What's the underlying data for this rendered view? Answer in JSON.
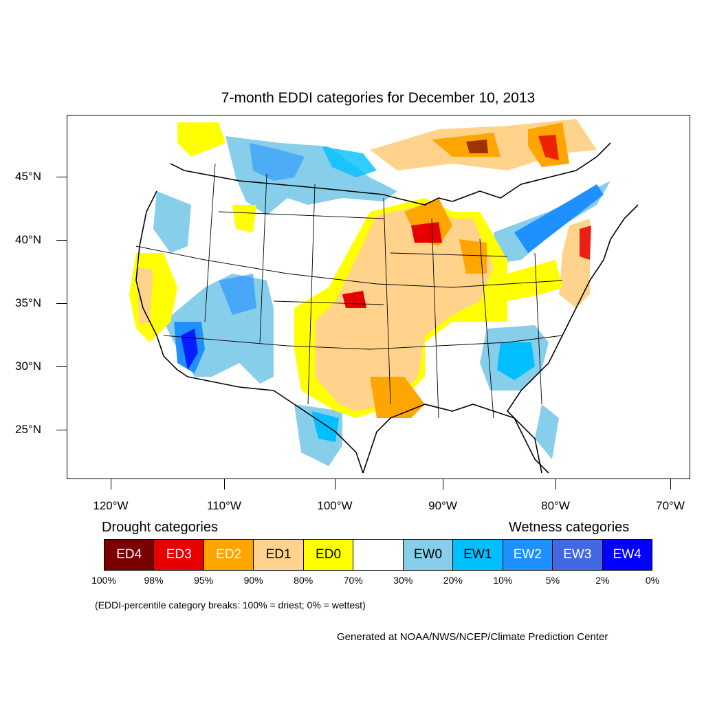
{
  "title": "7-month EDDI categories for December 10, 2013",
  "lat_labels": [
    "45°N",
    "40°N",
    "35°N",
    "30°N",
    "25°N"
  ],
  "lon_labels": [
    "120°W",
    "110°W",
    "100°W",
    "90°W",
    "80°W",
    "70°W"
  ],
  "legend": {
    "drought_heading": "Drought categories",
    "wetness_heading": "Wetness categories",
    "categories": [
      {
        "label": "ED4",
        "color": "#7a0000",
        "text_color": "#ffffff"
      },
      {
        "label": "ED3",
        "color": "#e60000",
        "text_color": "#ffffff"
      },
      {
        "label": "ED2",
        "color": "#ffa500",
        "text_color": "#ffffff"
      },
      {
        "label": "ED1",
        "color": "#ffd38c",
        "text_color": "#000000"
      },
      {
        "label": "ED0",
        "color": "#ffff00",
        "text_color": "#000000"
      },
      {
        "label": "",
        "color": "#ffffff",
        "text_color": "#000000"
      },
      {
        "label": "EW0",
        "color": "#87ceeb",
        "text_color": "#000000"
      },
      {
        "label": "EW1",
        "color": "#00bfff",
        "text_color": "#000000"
      },
      {
        "label": "EW2",
        "color": "#1e90ff",
        "text_color": "#ffffff"
      },
      {
        "label": "EW3",
        "color": "#4169e1",
        "text_color": "#ffffff"
      },
      {
        "label": "EW4",
        "color": "#0000ff",
        "text_color": "#ffffff"
      }
    ],
    "breaks": [
      "100%",
      "98%",
      "95%",
      "90%",
      "80%",
      "70%",
      "30%",
      "20%",
      "10%",
      "5%",
      "2%",
      "0%"
    ]
  },
  "note": "(EDDI-percentile category breaks: 100% = driest; 0% = wettest)",
  "credit": "Generated at NOAA/NWS/NCEP/Climate Prediction Center"
}
